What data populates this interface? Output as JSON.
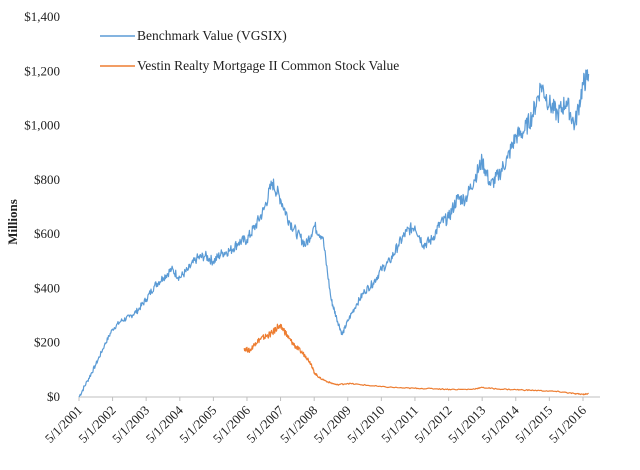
{
  "chart_data": {
    "type": "line",
    "title": "",
    "xlabel": "",
    "ylabel": "Millions",
    "ylim": [
      0,
      1400
    ],
    "y_ticks": [
      0,
      200,
      400,
      600,
      800,
      1000,
      1200,
      1400
    ],
    "y_tick_labels": [
      "$0",
      "$200",
      "$400",
      "$600",
      "$800",
      "$1,000",
      "$1,200",
      "$1,400"
    ],
    "x_range": [
      "2001-05-01",
      "2016-05-01"
    ],
    "x_ticks": [
      "2001-05-01",
      "2002-05-01",
      "2003-05-01",
      "2004-05-01",
      "2005-05-01",
      "2006-05-01",
      "2007-05-01",
      "2008-05-01",
      "2009-05-01",
      "2010-05-01",
      "2011-05-01",
      "2012-05-01",
      "2013-05-01",
      "2014-05-01",
      "2015-05-01",
      "2016-05-01"
    ],
    "x_tick_labels": [
      "5/1/2001",
      "5/1/2002",
      "5/1/2003",
      "5/1/2004",
      "5/1/2005",
      "5/1/2006",
      "5/1/2007",
      "5/1/2008",
      "5/1/2009",
      "5/1/2010",
      "5/1/2011",
      "5/1/2012",
      "5/1/2013",
      "5/1/2014",
      "5/1/2015",
      "5/1/2016"
    ],
    "grid": false,
    "legend_position": "top-left",
    "series": [
      {
        "name": "Benchmark Value (VGSIX)",
        "color": "#5B9BD5",
        "points": [
          [
            "2001-05-01",
            0
          ],
          [
            "2001-08-01",
            60
          ],
          [
            "2001-11-01",
            120
          ],
          [
            "2002-02-01",
            190
          ],
          [
            "2002-05-01",
            250
          ],
          [
            "2002-08-01",
            280
          ],
          [
            "2002-11-01",
            295
          ],
          [
            "2003-02-01",
            320
          ],
          [
            "2003-05-01",
            360
          ],
          [
            "2003-08-01",
            410
          ],
          [
            "2003-11-01",
            440
          ],
          [
            "2004-02-01",
            470
          ],
          [
            "2004-05-01",
            440
          ],
          [
            "2004-08-01",
            470
          ],
          [
            "2004-11-01",
            510
          ],
          [
            "2005-02-01",
            520
          ],
          [
            "2005-05-01",
            500
          ],
          [
            "2005-08-01",
            530
          ],
          [
            "2005-11-01",
            540
          ],
          [
            "2006-02-01",
            570
          ],
          [
            "2006-05-01",
            580
          ],
          [
            "2006-08-01",
            630
          ],
          [
            "2006-11-01",
            690
          ],
          [
            "2007-02-01",
            790
          ],
          [
            "2007-05-01",
            730
          ],
          [
            "2007-08-01",
            650
          ],
          [
            "2007-11-01",
            600
          ],
          [
            "2008-02-01",
            560
          ],
          [
            "2008-05-01",
            630
          ],
          [
            "2008-08-01",
            590
          ],
          [
            "2008-11-01",
            360
          ],
          [
            "2009-01-01",
            290
          ],
          [
            "2009-03-01",
            230
          ],
          [
            "2009-05-01",
            280
          ],
          [
            "2009-08-01",
            340
          ],
          [
            "2009-11-01",
            390
          ],
          [
            "2010-02-01",
            420
          ],
          [
            "2010-05-01",
            470
          ],
          [
            "2010-08-01",
            500
          ],
          [
            "2010-11-01",
            560
          ],
          [
            "2011-02-01",
            610
          ],
          [
            "2011-05-01",
            630
          ],
          [
            "2011-08-01",
            560
          ],
          [
            "2011-11-01",
            580
          ],
          [
            "2012-02-01",
            640
          ],
          [
            "2012-05-01",
            660
          ],
          [
            "2012-08-01",
            730
          ],
          [
            "2012-11-01",
            730
          ],
          [
            "2013-02-01",
            800
          ],
          [
            "2013-05-01",
            870
          ],
          [
            "2013-08-01",
            780
          ],
          [
            "2013-11-01",
            820
          ],
          [
            "2014-02-01",
            880
          ],
          [
            "2014-05-01",
            960
          ],
          [
            "2014-08-01",
            980
          ],
          [
            "2014-11-01",
            1040
          ],
          [
            "2015-02-01",
            1150
          ],
          [
            "2015-05-01",
            1080
          ],
          [
            "2015-08-01",
            1040
          ],
          [
            "2015-11-01",
            1090
          ],
          [
            "2016-02-01",
            1000
          ],
          [
            "2016-05-01",
            1150
          ],
          [
            "2016-07-01",
            1190
          ]
        ]
      },
      {
        "name": "Vestin Realty Mortgage II Common Stock Value",
        "color": "#ED7D31",
        "points": [
          [
            "2006-04-01",
            180
          ],
          [
            "2006-06-01",
            170
          ],
          [
            "2006-08-01",
            200
          ],
          [
            "2006-10-01",
            215
          ],
          [
            "2006-12-01",
            225
          ],
          [
            "2007-02-01",
            235
          ],
          [
            "2007-04-01",
            260
          ],
          [
            "2007-06-01",
            250
          ],
          [
            "2007-08-01",
            215
          ],
          [
            "2007-10-01",
            190
          ],
          [
            "2007-12-01",
            170
          ],
          [
            "2008-02-01",
            150
          ],
          [
            "2008-04-01",
            120
          ],
          [
            "2008-05-01",
            90
          ],
          [
            "2008-07-01",
            70
          ],
          [
            "2008-10-01",
            55
          ],
          [
            "2009-01-01",
            45
          ],
          [
            "2009-05-01",
            50
          ],
          [
            "2009-10-01",
            45
          ],
          [
            "2010-05-01",
            38
          ],
          [
            "2011-01-01",
            33
          ],
          [
            "2011-06-01",
            32
          ],
          [
            "2012-01-01",
            30
          ],
          [
            "2012-06-01",
            28
          ],
          [
            "2013-01-01",
            28
          ],
          [
            "2013-05-01",
            35
          ],
          [
            "2013-10-01",
            30
          ],
          [
            "2014-05-01",
            27
          ],
          [
            "2014-10-01",
            25
          ],
          [
            "2015-05-01",
            22
          ],
          [
            "2015-10-01",
            18
          ],
          [
            "2016-02-01",
            12
          ],
          [
            "2016-05-01",
            10
          ],
          [
            "2016-07-01",
            12
          ]
        ]
      }
    ]
  }
}
